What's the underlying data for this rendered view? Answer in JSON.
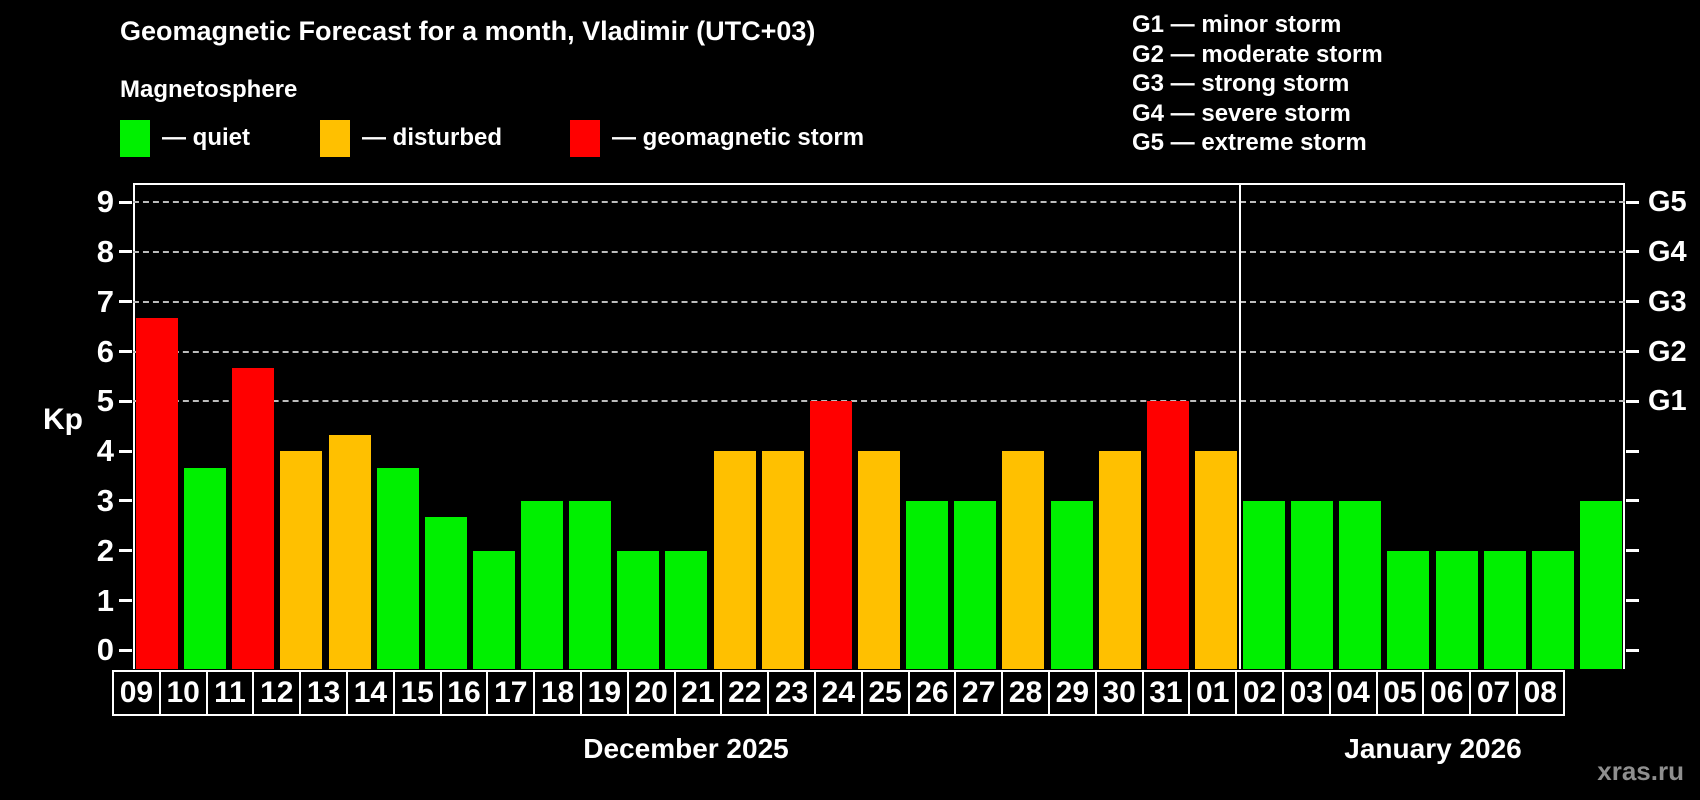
{
  "title": "Geomagnetic Forecast for a month, Vladimir (UTC+03)",
  "subtitle": "Magnetosphere",
  "legend": [
    {
      "key": "quiet",
      "label": "— quiet",
      "color": "#00f000"
    },
    {
      "key": "disturbed",
      "label": "— disturbed",
      "color": "#ffc000"
    },
    {
      "key": "storm",
      "label": "— geomagnetic storm",
      "color": "#ff0000"
    }
  ],
  "storm_scale": [
    "G1 — minor storm",
    "G2 — moderate storm",
    "G3 — strong storm",
    "G4 — severe storm",
    "G5 — extreme storm"
  ],
  "watermark": "xras.ru",
  "chart_data": {
    "type": "bar",
    "ylabel": "Kp",
    "ylim": [
      0,
      9.4
    ],
    "yticks": [
      0,
      1,
      2,
      3,
      4,
      5,
      6,
      7,
      8,
      9
    ],
    "gridlines": [
      5,
      6,
      7,
      8,
      9
    ],
    "grid_style": "dashed, horizontal only, upper half",
    "legend_position": "top",
    "right_axis": [
      {
        "label": "G1",
        "value": 5
      },
      {
        "label": "G2",
        "value": 6
      },
      {
        "label": "G3",
        "value": 7
      },
      {
        "label": "G4",
        "value": 8
      },
      {
        "label": "G5",
        "value": 9
      }
    ],
    "colors": {
      "quiet": "#00f000",
      "disturbed": "#ffc000",
      "storm": "#ff0000"
    },
    "groups": [
      {
        "label": "December 2025",
        "days": [
          {
            "date": "09",
            "kp": 6.67,
            "status": "storm"
          },
          {
            "date": "10",
            "kp": 3.67,
            "status": "quiet"
          },
          {
            "date": "11",
            "kp": 5.67,
            "status": "storm"
          },
          {
            "date": "12",
            "kp": 4.0,
            "status": "disturbed"
          },
          {
            "date": "13",
            "kp": 4.33,
            "status": "disturbed"
          },
          {
            "date": "14",
            "kp": 3.67,
            "status": "quiet"
          },
          {
            "date": "15",
            "kp": 2.67,
            "status": "quiet"
          },
          {
            "date": "16",
            "kp": 2.0,
            "status": "quiet"
          },
          {
            "date": "17",
            "kp": 3.0,
            "status": "quiet"
          },
          {
            "date": "18",
            "kp": 3.0,
            "status": "quiet"
          },
          {
            "date": "19",
            "kp": 2.0,
            "status": "quiet"
          },
          {
            "date": "20",
            "kp": 2.0,
            "status": "quiet"
          },
          {
            "date": "21",
            "kp": 4.0,
            "status": "disturbed"
          },
          {
            "date": "22",
            "kp": 4.0,
            "status": "disturbed"
          },
          {
            "date": "23",
            "kp": 5.0,
            "status": "storm"
          },
          {
            "date": "24",
            "kp": 4.0,
            "status": "disturbed"
          },
          {
            "date": "25",
            "kp": 3.0,
            "status": "quiet"
          },
          {
            "date": "26",
            "kp": 3.0,
            "status": "quiet"
          },
          {
            "date": "27",
            "kp": 4.0,
            "status": "disturbed"
          },
          {
            "date": "28",
            "kp": 3.0,
            "status": "quiet"
          },
          {
            "date": "29",
            "kp": 4.0,
            "status": "disturbed"
          },
          {
            "date": "30",
            "kp": 5.0,
            "status": "storm"
          },
          {
            "date": "31",
            "kp": 4.0,
            "status": "disturbed"
          }
        ]
      },
      {
        "label": "January 2026",
        "days": [
          {
            "date": "01",
            "kp": 3.0,
            "status": "quiet"
          },
          {
            "date": "02",
            "kp": 3.0,
            "status": "quiet"
          },
          {
            "date": "03",
            "kp": 3.0,
            "status": "quiet"
          },
          {
            "date": "04",
            "kp": 2.0,
            "status": "quiet"
          },
          {
            "date": "05",
            "kp": 2.0,
            "status": "quiet"
          },
          {
            "date": "06",
            "kp": 2.0,
            "status": "quiet"
          },
          {
            "date": "07",
            "kp": 2.0,
            "status": "quiet"
          },
          {
            "date": "08",
            "kp": 3.0,
            "status": "quiet"
          }
        ]
      }
    ]
  }
}
